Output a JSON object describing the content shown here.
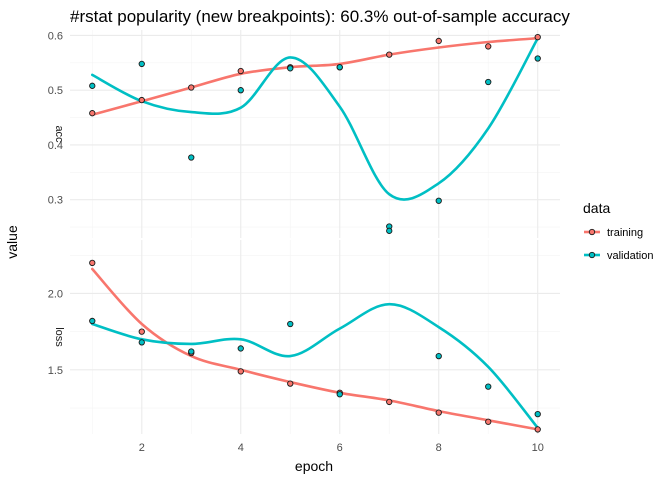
{
  "chart_data": {
    "type": "scatter",
    "title": "#rstat popularity (new breakpoints): 60.3% out-of-sample accuracy",
    "xlabel": "epoch",
    "ylabel": "value",
    "x": [
      1,
      2,
      3,
      4,
      5,
      6,
      7,
      8,
      9,
      10
    ],
    "x_ticks": [
      2,
      4,
      6,
      8,
      10
    ],
    "x_tick_labels": [
      "2",
      "4",
      "6",
      "8",
      "10"
    ],
    "xlim": [
      0.55,
      10.45
    ],
    "grid": true,
    "smooth_lines": true,
    "legend": {
      "title": "data",
      "position": "right",
      "entries": [
        "training",
        "validation"
      ]
    },
    "colors": {
      "training": "#f8766d",
      "validation": "#00bfc4"
    },
    "panels": [
      {
        "strip_label": "acc",
        "ylim": [
          0.23,
          0.61
        ],
        "y_ticks": [
          0.3,
          0.4,
          0.5,
          0.6
        ],
        "y_tick_labels": [
          "0.3",
          "0.4",
          "0.5",
          "0.6"
        ],
        "series": [
          {
            "name": "training",
            "values": [
              0.458,
              0.482,
              0.505,
              0.535,
              0.542,
              0.542,
              0.565,
              0.59,
              0.58,
              0.597
            ],
            "smooth": [
              0.455,
              0.48,
              0.505,
              0.53,
              0.542,
              0.548,
              0.565,
              0.578,
              0.588,
              0.595
            ]
          },
          {
            "name": "validation",
            "values": [
              0.508,
              0.548,
              0.377,
              0.5,
              0.54,
              0.542,
              0.251,
              0.298,
              0.515,
              0.558
            ],
            "smooth": [
              0.528,
              0.48,
              0.46,
              0.468,
              0.56,
              0.47,
              0.31,
              0.33,
              0.43,
              0.595
            ]
          }
        ]
      },
      {
        "strip_label": "loss",
        "ylim": [
          1.08,
          2.35
        ],
        "y_ticks": [
          1.5,
          2.0
        ],
        "y_tick_labels": [
          "1.5",
          "2.0"
        ],
        "series": [
          {
            "name": "training",
            "values": [
              2.2,
              1.75,
              1.61,
              1.49,
              1.41,
              1.35,
              1.29,
              1.22,
              1.16,
              1.11
            ],
            "smooth": [
              2.16,
              1.8,
              1.59,
              1.5,
              1.42,
              1.35,
              1.3,
              1.23,
              1.17,
              1.11
            ]
          },
          {
            "name": "validation",
            "values": [
              1.82,
              1.68,
              1.62,
              1.64,
              1.8,
              1.34,
              2.41,
              1.59,
              1.39,
              1.21
            ],
            "smooth": [
              1.8,
              1.7,
              1.67,
              1.7,
              1.59,
              1.77,
              1.93,
              1.78,
              1.52,
              1.12
            ]
          }
        ]
      }
    ]
  }
}
